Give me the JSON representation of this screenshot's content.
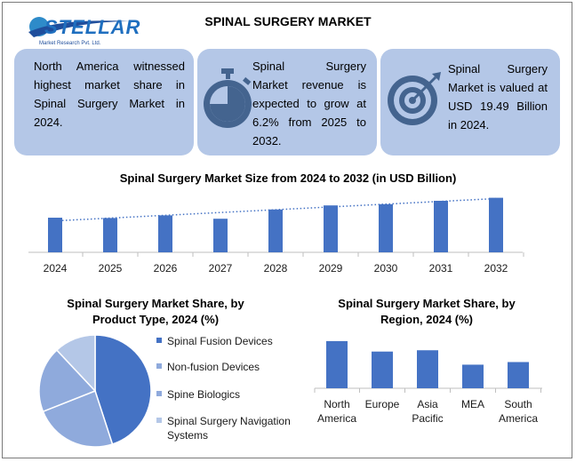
{
  "brand": {
    "name": "STELLAR",
    "sub": "Market Research Pvt. Ltd."
  },
  "title": "SPINAL SURGERY MARKET",
  "cards": [
    {
      "icon": "globe-icon",
      "text": "North America witnessed highest market share in Spinal Surgery Market in 2024."
    },
    {
      "icon": "stopwatch-icon",
      "text": "Spinal Surgery Market revenue is expected to grow at 6.2% from 2025 to 2032."
    },
    {
      "icon": "target-icon",
      "text": "Spinal Surgery Market is valued at USD 19.49 Billion in 2024."
    }
  ],
  "colors": {
    "bar": "#4472c4",
    "card": "#b4c7e7",
    "icon": "#44648f"
  },
  "chart_data": [
    {
      "type": "bar",
      "title": "Spinal Surgery Market Size from 2024 to 2032 (in USD Billion)",
      "categories": [
        "2024",
        "2025",
        "2026",
        "2027",
        "2028",
        "2029",
        "2030",
        "2031",
        "2032"
      ],
      "values": [
        19.49,
        19.3,
        20.8,
        18.9,
        24.1,
        26.4,
        27.1,
        29.0,
        30.7
      ],
      "trendline": "linear, dotted",
      "ylim": [
        0,
        32
      ]
    },
    {
      "type": "pie",
      "title": "Spinal Surgery Market Share, by Product Type, 2024 (%)",
      "labels": [
        "Spinal Fusion Devices",
        "Non-fusion Devices",
        "Spine Biologics",
        "Spinal Surgery Navigation Systems"
      ],
      "values": [
        45,
        24,
        19,
        12
      ],
      "colors": [
        "#4472c4",
        "#8faadc",
        "#8faadc",
        "#b4c7e7"
      ]
    },
    {
      "type": "bar",
      "title": "Spinal Surgery Market Share, by Region, 2024 (%)",
      "categories": [
        "North America",
        "Europe",
        "Asia Pacific",
        "MEA",
        "South America"
      ],
      "values": [
        36,
        28,
        29,
        18,
        20
      ],
      "ylim": [
        0,
        40
      ]
    }
  ]
}
